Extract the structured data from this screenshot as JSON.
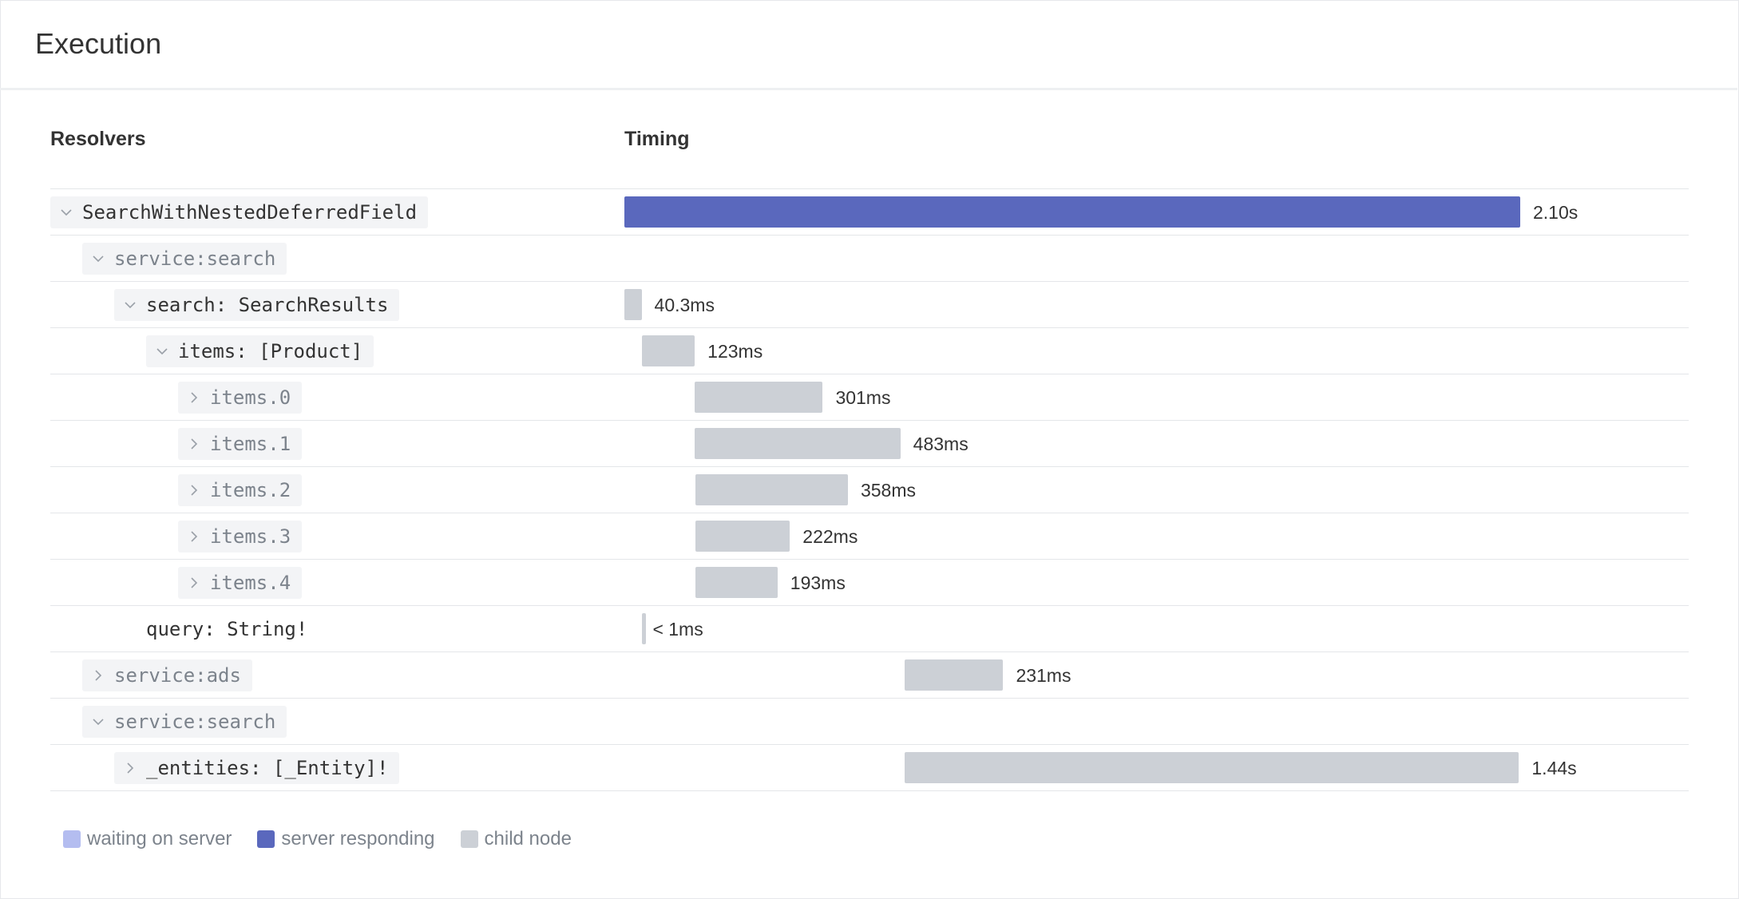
{
  "header": {
    "title": "Execution"
  },
  "columns": [
    "Resolvers",
    "Timing"
  ],
  "rows": [
    {
      "label": "SearchWithNestedDeferredField",
      "depth": 0,
      "expanded": true,
      "muted": false,
      "start_ms": 0,
      "duration_ms": 2100,
      "duration_label": "2.10s",
      "color": "#5a68bd"
    },
    {
      "label": "service:search",
      "depth": 1,
      "expanded": true,
      "muted": true
    },
    {
      "label": "search: SearchResults",
      "depth": 2,
      "expanded": true,
      "muted": false,
      "start_ms": 0,
      "duration_ms": 40.3,
      "duration_label": "40.3ms",
      "color": "#ccd0d6"
    },
    {
      "label": "items: [Product]",
      "depth": 3,
      "expanded": true,
      "muted": false,
      "start_ms": 42,
      "duration_ms": 123,
      "duration_label": "123ms",
      "color": "#ccd0d6"
    },
    {
      "label": "items.0",
      "depth": 4,
      "expanded": false,
      "muted": true,
      "start_ms": 164,
      "duration_ms": 301,
      "duration_label": "301ms",
      "color": "#ccd0d6"
    },
    {
      "label": "items.1",
      "depth": 4,
      "expanded": false,
      "muted": true,
      "start_ms": 164,
      "duration_ms": 483,
      "duration_label": "483ms",
      "color": "#ccd0d6"
    },
    {
      "label": "items.2",
      "depth": 4,
      "expanded": false,
      "muted": true,
      "start_ms": 166,
      "duration_ms": 358,
      "duration_label": "358ms",
      "color": "#ccd0d6"
    },
    {
      "label": "items.3",
      "depth": 4,
      "expanded": false,
      "muted": true,
      "start_ms": 166,
      "duration_ms": 222,
      "duration_label": "222ms",
      "color": "#ccd0d6"
    },
    {
      "label": "items.4",
      "depth": 4,
      "expanded": false,
      "muted": true,
      "start_ms": 166,
      "duration_ms": 193,
      "duration_label": "193ms",
      "color": "#ccd0d6"
    },
    {
      "label": "query: String!",
      "depth": 2,
      "expanded": null,
      "muted": false,
      "start_ms": 42,
      "duration_ms": 1,
      "duration_label": "< 1ms",
      "color": "#ccd0d6"
    },
    {
      "label": "service:ads",
      "depth": 1,
      "expanded": false,
      "muted": true,
      "start_ms": 657,
      "duration_ms": 231,
      "duration_label": "231ms",
      "color": "#ccd0d6"
    },
    {
      "label": "service:search",
      "depth": 1,
      "expanded": true,
      "muted": true
    },
    {
      "label": "_entities: [_Entity]!",
      "depth": 2,
      "expanded": false,
      "muted": false,
      "start_ms": 657,
      "duration_ms": 1440,
      "duration_label": "1.44s",
      "color": "#ccd0d6"
    }
  ],
  "legend": [
    {
      "label": "waiting on server",
      "color": "#b4bdf0"
    },
    {
      "label": "server responding",
      "color": "#5a68bd"
    },
    {
      "label": "child node",
      "color": "#ccd0d6"
    }
  ]
}
